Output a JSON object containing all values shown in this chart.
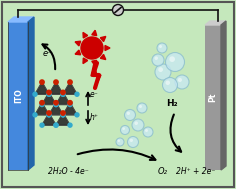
{
  "bg_color": "#c5e8bc",
  "left_electrode_color": "#5599ee",
  "right_electrode_color": "#aaaaaa",
  "sun_color": "#cc0000",
  "lightning_color": "#cc0000",
  "bubble_color_light": "#aad8ee",
  "wire_color": "#111111",
  "label_left": "ITO",
  "label_right": "Pt",
  "label_reaction_left": "2H₂O - 4e⁻",
  "label_o2": "O₂",
  "label_h2": "H₂",
  "label_reaction_right": "2H⁺ + 2e⁻",
  "label_eminus": "e⁻",
  "label_hplus": "h⁺",
  "figsize": [
    2.36,
    1.89
  ],
  "dpi": 100
}
